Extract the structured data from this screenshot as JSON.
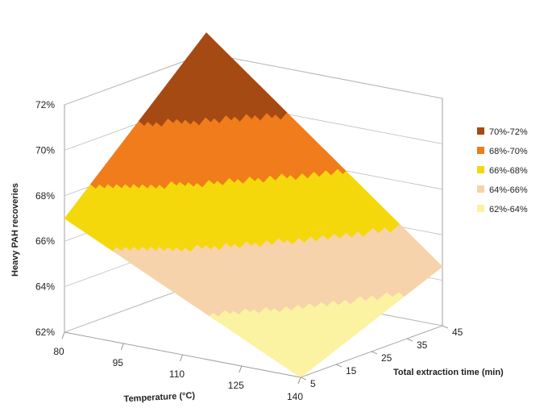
{
  "chart_data": {
    "type": "surface",
    "title": "",
    "xlabel": "Temperature (°C)",
    "ylabel": "Total extraction time (min)",
    "zlabel": "Heavy PAH recoveries",
    "x_ticks": [
      "80",
      "95",
      "110",
      "125",
      "140"
    ],
    "y_ticks": [
      "5",
      "15",
      "25",
      "35",
      "45"
    ],
    "z_ticks": [
      "62%",
      "64%",
      "66%",
      "68%",
      "70%",
      "72%"
    ],
    "x_range": [
      80,
      140
    ],
    "y_range": [
      5,
      45
    ],
    "z_range": [
      62,
      72
    ],
    "grid": true,
    "legend_position": "right",
    "bands": [
      {
        "label": "70%-72%",
        "min": 70,
        "max": 72,
        "color": "#a64a14"
      },
      {
        "label": "68%-70%",
        "min": 68,
        "max": 70,
        "color": "#f07c1b"
      },
      {
        "label": "66%-68%",
        "min": 66,
        "max": 68,
        "color": "#f4d80c"
      },
      {
        "label": "64%-66%",
        "min": 64,
        "max": 66,
        "color": "#f6d3ab"
      },
      {
        "label": "62%-64%",
        "min": 62,
        "max": 64,
        "color": "#fbf2a2"
      }
    ],
    "surface": {
      "x": [
        80,
        140
      ],
      "y": [
        5,
        45
      ],
      "z": [
        [
          67.0,
          72.9
        ],
        [
          62.0,
          64.6
        ]
      ]
    }
  }
}
